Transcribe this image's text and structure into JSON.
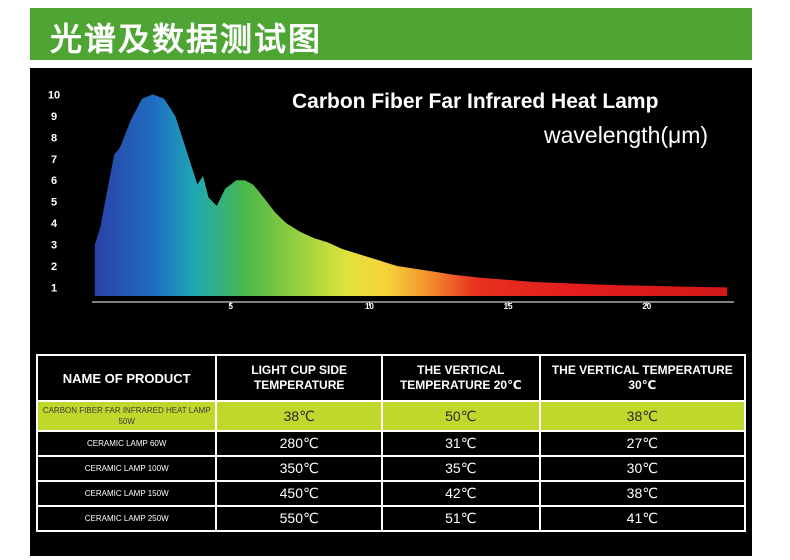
{
  "banner": {
    "title": "光谱及数据测试图"
  },
  "chart_data": {
    "type": "area",
    "title": "Carbon Fiber Far Infrared Heat Lamp",
    "xlabel": "wavelength(μm)",
    "ylabel": "",
    "xlim": [
      0,
      23
    ],
    "ylim": [
      0.6,
      10.3
    ],
    "x_ticks": [
      5,
      10,
      15,
      20
    ],
    "y_ticks": [
      1,
      2,
      3,
      4,
      5,
      6,
      7,
      8,
      9,
      10
    ],
    "grid": false,
    "series": [
      {
        "values_x": [
          0.1,
          0.3,
          0.5,
          0.8,
          1.0,
          1.4,
          1.8,
          2.2,
          2.6,
          3.0,
          3.2,
          3.5,
          3.8,
          4.0,
          4.2,
          4.5,
          4.8,
          5.0,
          5.2,
          5.5,
          5.8,
          6.0,
          6.3,
          6.6,
          7.0,
          7.5,
          8.0,
          8.5,
          9.0,
          9.5,
          10.0,
          10.5,
          11.0,
          11.5,
          12.0,
          12.5,
          13.0,
          14.0,
          15.0,
          16.0,
          17.0,
          18.0,
          19.0,
          20.0,
          21.0,
          22.0,
          22.9
        ],
        "values_y": [
          3.0,
          3.8,
          5.2,
          7.2,
          7.5,
          8.8,
          9.8,
          10.0,
          9.8,
          9.0,
          8.2,
          7.0,
          5.8,
          6.2,
          5.2,
          4.8,
          5.6,
          5.8,
          6.0,
          6.0,
          5.8,
          5.5,
          5.0,
          4.5,
          4.0,
          3.6,
          3.3,
          3.1,
          2.8,
          2.6,
          2.4,
          2.2,
          2.0,
          1.9,
          1.8,
          1.7,
          1.6,
          1.45,
          1.35,
          1.25,
          1.2,
          1.15,
          1.1,
          1.08,
          1.05,
          1.02,
          1.0
        ]
      }
    ]
  },
  "table": {
    "headers": [
      "NAME OF PRODUCT",
      "LIGHT CUP SIDE TEMPERATURE",
      "THE VERTICAL TEMPERATURE 20℃",
      "THE VERTICAL TEMPERATURE 30℃"
    ],
    "rows": [
      {
        "name": "CARBON FIBER FAR INFRARED HEAT LAMP 50W",
        "side": "38℃",
        "v20": "50℃",
        "v30": "38℃"
      },
      {
        "name": "CERAMIC LAMP 60W",
        "side": "280℃",
        "v20": "31℃",
        "v30": "27℃"
      },
      {
        "name": "CERAMIC LAMP 100W",
        "side": "350℃",
        "v20": "35℃",
        "v30": "30℃"
      },
      {
        "name": "CERAMIC LAMP 150W",
        "side": "450℃",
        "v20": "42℃",
        "v30": "38℃"
      },
      {
        "name": "CERAMIC LAMP 250W",
        "side": "550℃",
        "v20": "51℃",
        "v30": "41℃"
      }
    ]
  },
  "colors": {
    "banner": "#4ea533",
    "panel": "#000000",
    "highlight_row": "#c0d72c"
  }
}
